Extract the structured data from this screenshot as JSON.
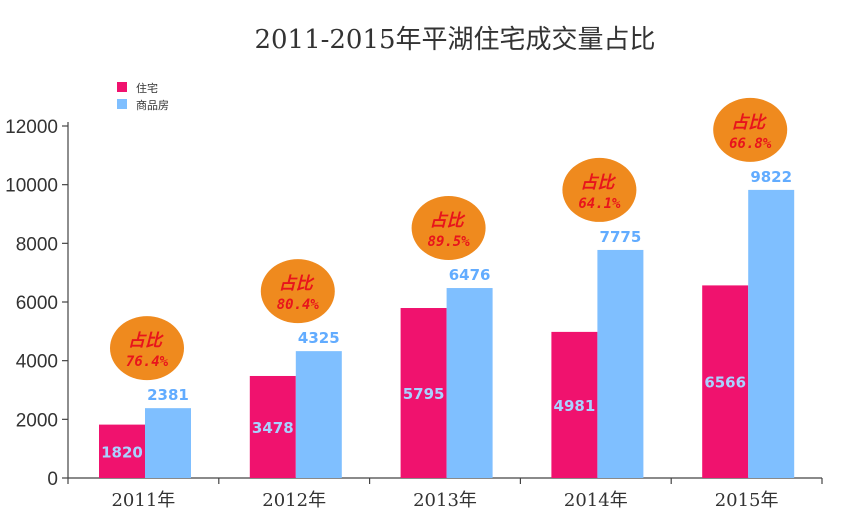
{
  "chart_data": {
    "type": "bar",
    "title": "2011-2015年平湖住宅成交量占比",
    "categories": [
      "2011年",
      "2012年",
      "2013年",
      "2014年",
      "2015年"
    ],
    "series": [
      {
        "name": "住宅",
        "color": "#f0126e",
        "values": [
          1820,
          3478,
          5795,
          4981,
          6566
        ]
      },
      {
        "name": "商品房",
        "color": "#7fbfff",
        "values": [
          2381,
          4325,
          6476,
          7775,
          9822
        ]
      }
    ],
    "ratio_label": "占比",
    "ratios": [
      "76.4%",
      "80.4%",
      "89.5%",
      "64.1%",
      "66.8%"
    ],
    "ylim": [
      0,
      12000
    ],
    "yticks": [
      0,
      2000,
      4000,
      6000,
      8000,
      10000,
      12000
    ],
    "grid": false,
    "legend": "top-left",
    "bubble_color": "#ef8a1e"
  }
}
